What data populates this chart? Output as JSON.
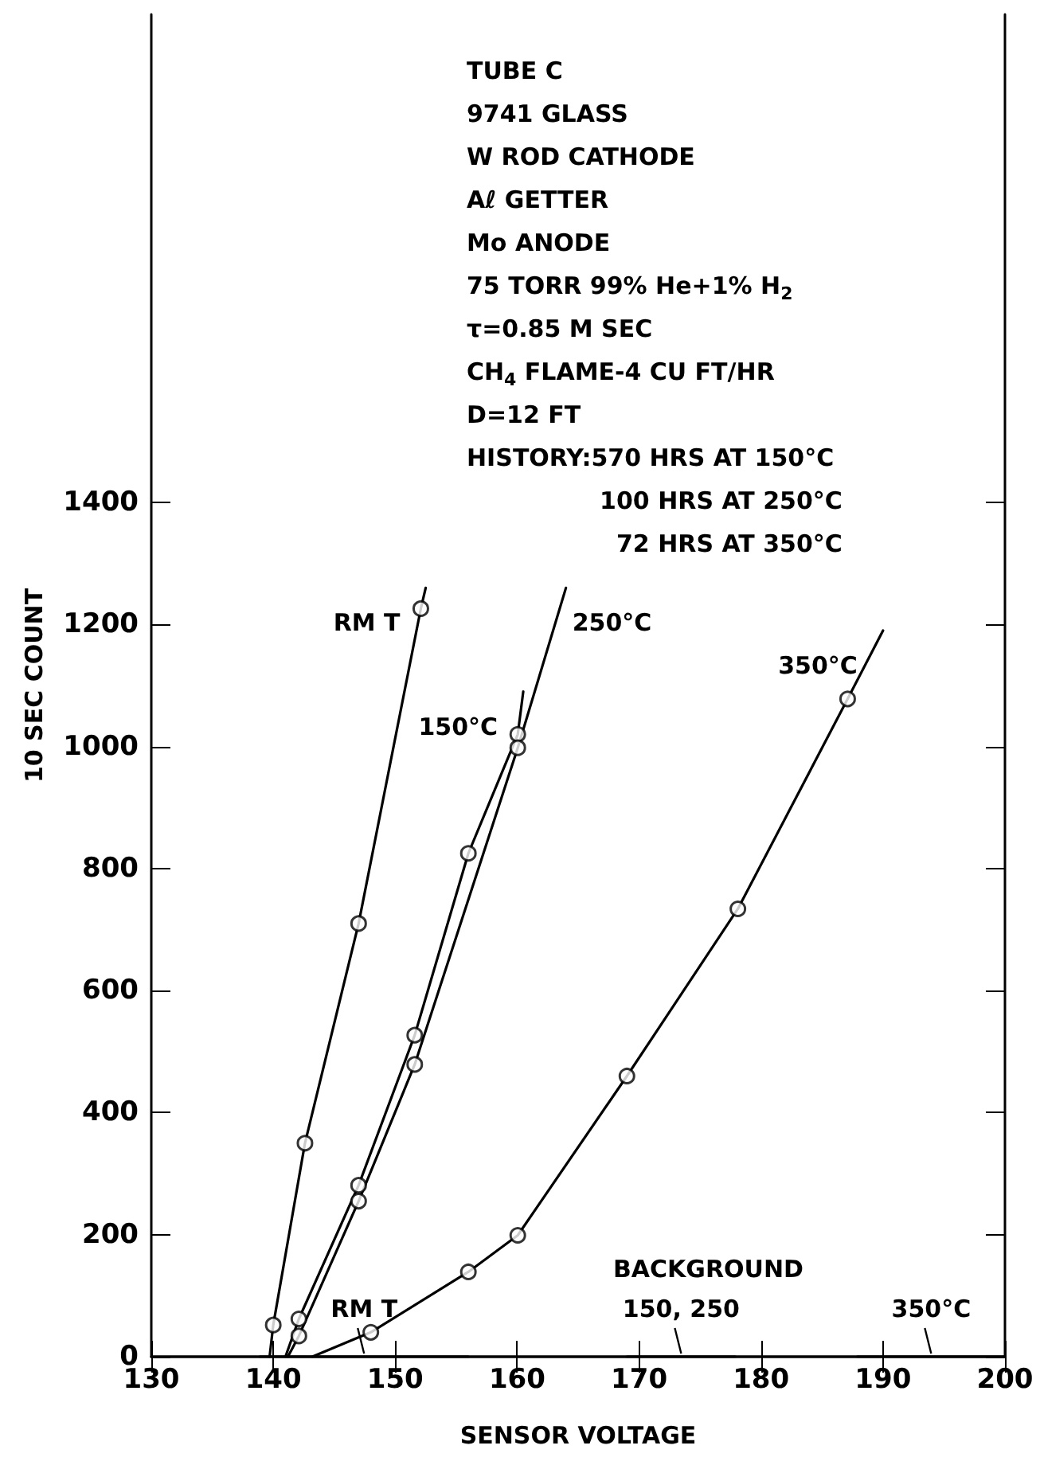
{
  "chart_data": {
    "type": "line",
    "xlabel": "SENSOR VOLTAGE",
    "ylabel": "10 SEC COUNT",
    "xlim": [
      130,
      200
    ],
    "xticks": [
      130,
      140,
      150,
      160,
      170,
      180,
      190,
      200
    ],
    "ylim": [
      0,
      2200
    ],
    "yticks": [
      0,
      200,
      400,
      600,
      800,
      1000,
      1200,
      1400
    ],
    "grid": false,
    "legend": false,
    "line_style": "solid",
    "marker": "none",
    "series": [
      {
        "name": "RM T",
        "color": "#000000",
        "x": [
          139.7,
          140.0,
          142.6,
          147.0,
          152.1,
          152.5
        ],
        "values": [
          0,
          52,
          350,
          710,
          1226,
          1260
        ]
      },
      {
        "name": "150°C",
        "color": "#000000",
        "x": [
          141.0,
          142.1,
          147.0,
          151.6,
          156.0,
          160.05,
          160.5
        ],
        "values": [
          0,
          62,
          281,
          527,
          825,
          1020,
          1090
        ]
      },
      {
        "name": "250°C",
        "color": "#000000",
        "x": [
          141.2,
          142.1,
          147.0,
          151.6,
          160.05,
          164.0
        ],
        "values": [
          0,
          34,
          255,
          479,
          998,
          1260
        ]
      },
      {
        "name": "350°C",
        "color": "#000000",
        "x": [
          143.2,
          148.0,
          156.0,
          160.05,
          169.0,
          178.1,
          187.1,
          190.0
        ],
        "values": [
          0,
          40,
          139,
          199,
          460,
          734,
          1078,
          1190
        ]
      },
      {
        "type": "scatter",
        "marker": "circle",
        "color": "#000000",
        "x": [
          140.0,
          142.6,
          147.0,
          152.1,
          142.1,
          147.0,
          151.6,
          156.0,
          160.05,
          142.1,
          147.0,
          151.6,
          160.05,
          148.0,
          156.0,
          160.05,
          169.0,
          178.1,
          187.1
        ],
        "values": [
          52,
          350,
          710,
          1226,
          62,
          281,
          527,
          825,
          1020,
          34,
          255,
          479,
          998,
          40,
          139,
          199,
          460,
          734,
          1078
        ]
      },
      {
        "name": "RM T",
        "color": "#000000",
        "x": [
          138.9,
          156.0
        ],
        "values": [
          0,
          0
        ]
      },
      {
        "name": "150, 250",
        "color": "#000000",
        "x": [
          169.0,
          177.9
        ],
        "values": [
          0,
          0
        ]
      },
      {
        "name": "350°C",
        "color": "#000000",
        "x": [
          187.9,
          200.0
        ],
        "values": [
          0,
          0
        ]
      }
    ],
    "annotations": [
      "TUBE C\n9741 GLASS\nW ROD CATHODE\nAℓ GETTER\nMo ANODE\n75 TORR 99% He+1% H$_{2}$\nτ=0.85 M SEC\nCH$_{4}$ FLAME-4 CU FT/HR\nD=12 FT\nHISTORY:570 HRS AT 150°C\n                100 HRS AT 250°C\n                  72 HRS AT 350°C",
      "BACKGROUND"
    ]
  }
}
